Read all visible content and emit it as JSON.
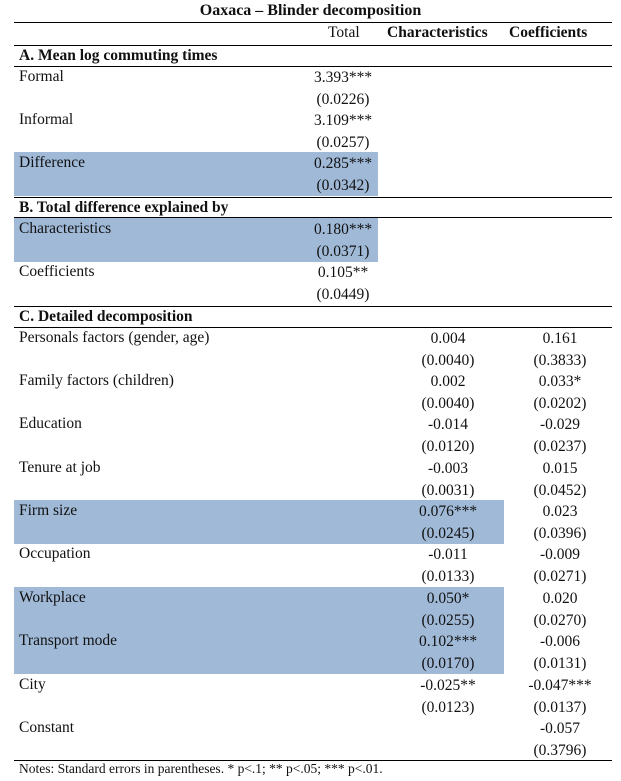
{
  "title": "Oaxaca – Blinder decomposition",
  "columns": {
    "total": "Total",
    "characteristics": "Characteristics",
    "coefficients": "Coefficients"
  },
  "highlight_color": "#9fb9d7",
  "panel_a": {
    "title": "A. Mean log commuting times",
    "rows": [
      {
        "label": "Formal",
        "total": "3.393***",
        "total_se": "(0.0226)"
      },
      {
        "label": "Informal",
        "total": "3.109***",
        "total_se": "(0.0257)"
      },
      {
        "label": "Difference",
        "total": "0.285***",
        "total_se": "(0.0342)"
      }
    ]
  },
  "panel_b": {
    "title": "B. Total difference explained by",
    "rows": [
      {
        "label": "Characteristics",
        "total": "0.180***",
        "total_se": "(0.0371)"
      },
      {
        "label": "Coefficients",
        "total": "0.105**",
        "total_se": "(0.0449)"
      }
    ]
  },
  "panel_c": {
    "title": "C. Detailed decomposition",
    "rows": [
      {
        "label": "Personals factors (gender, age)",
        "char": "0.004",
        "char_se": "(0.0040)",
        "coef": "0.161",
        "coef_se": "(0.3833)"
      },
      {
        "label": "Family factors (children)",
        "char": "0.002",
        "char_se": "(0.0040)",
        "coef": "0.033*",
        "coef_se": "(0.0202)"
      },
      {
        "label": "Education",
        "char": "-0.014",
        "char_se": "(0.0120)",
        "coef": "-0.029",
        "coef_se": "(0.0237)"
      },
      {
        "label": "Tenure at job",
        "char": "-0.003",
        "char_se": "(0.0031)",
        "coef": "0.015",
        "coef_se": "(0.0452)"
      },
      {
        "label": "Firm size",
        "char": "0.076***",
        "char_se": "(0.0245)",
        "coef": "0.023",
        "coef_se": "(0.0396)"
      },
      {
        "label": "Occupation",
        "char": "-0.011",
        "char_se": "(0.0133)",
        "coef": "-0.009",
        "coef_se": "(0.0271)"
      },
      {
        "label": "Workplace",
        "char": "0.050*",
        "char_se": "(0.0255)",
        "coef": "0.020",
        "coef_se": "(0.0270)"
      },
      {
        "label": "Transport mode",
        "char": "0.102***",
        "char_se": "(0.0170)",
        "coef": "-0.006",
        "coef_se": "(0.0131)"
      },
      {
        "label": "City",
        "char": "-0.025**",
        "char_se": "(0.0123)",
        "coef": "-0.047***",
        "coef_se": "(0.0137)"
      },
      {
        "label": "Constant",
        "char": "",
        "char_se": "",
        "coef": "-0.057",
        "coef_se": "(0.3796)"
      }
    ]
  },
  "notes": "Notes: Standard errors in parentheses. * p<.1; ** p<.05; *** p<.01."
}
